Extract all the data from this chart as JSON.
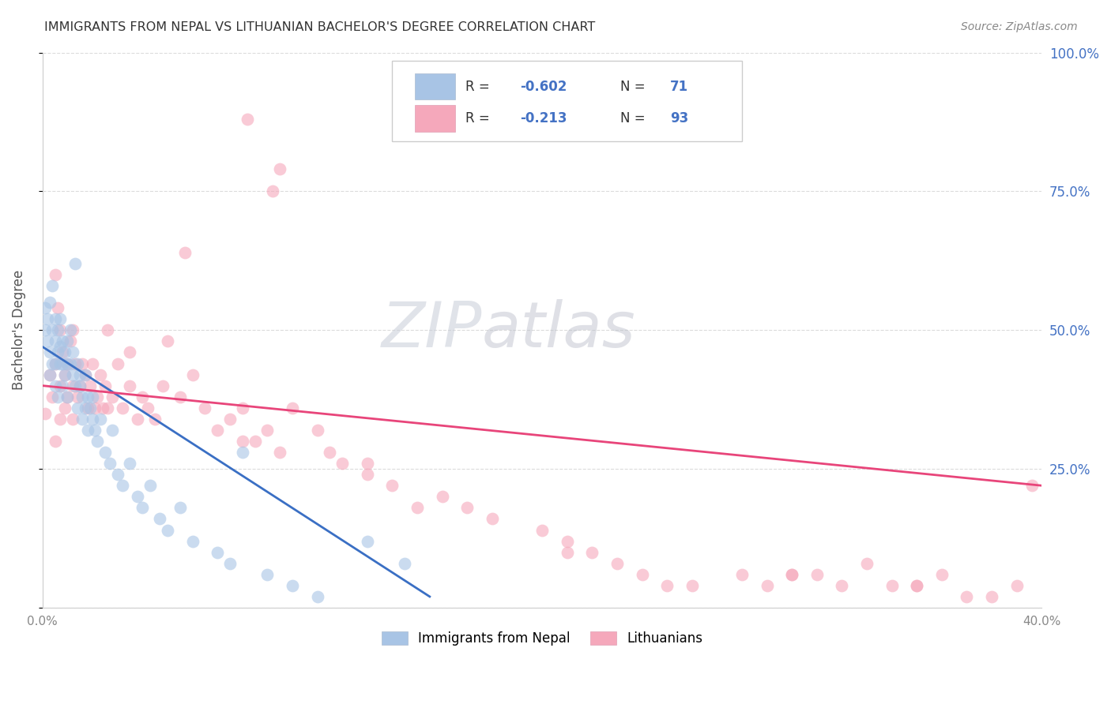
{
  "title": "IMMIGRANTS FROM NEPAL VS LITHUANIAN BACHELOR'S DEGREE CORRELATION CHART",
  "source": "Source: ZipAtlas.com",
  "ylabel": "Bachelor's Degree",
  "series1_label": "Immigrants from Nepal",
  "series2_label": "Lithuanians",
  "series1_R": "-0.602",
  "series1_N": "71",
  "series2_R": "-0.213",
  "series2_N": "93",
  "series1_color": "#a8c4e5",
  "series2_color": "#f5a8bb",
  "series1_line_color": "#3a6fc4",
  "series2_line_color": "#e8457a",
  "watermark_color": "#d8dde8",
  "background_color": "#ffffff",
  "grid_color": "#cccccc",
  "right_axis_color": "#4472c4",
  "legend_text_color": "#4472c4",
  "title_color": "#333333",
  "source_color": "#888888",
  "xlim": [
    0.0,
    0.4
  ],
  "ylim": [
    0.0,
    1.0
  ],
  "marker_size": 130,
  "marker_alpha": 0.6,
  "series1_x": [
    0.001,
    0.001,
    0.002,
    0.002,
    0.003,
    0.003,
    0.003,
    0.004,
    0.004,
    0.004,
    0.005,
    0.005,
    0.005,
    0.005,
    0.006,
    0.006,
    0.006,
    0.007,
    0.007,
    0.007,
    0.008,
    0.008,
    0.008,
    0.009,
    0.009,
    0.01,
    0.01,
    0.01,
    0.011,
    0.011,
    0.012,
    0.012,
    0.013,
    0.013,
    0.014,
    0.014,
    0.015,
    0.015,
    0.016,
    0.016,
    0.017,
    0.017,
    0.018,
    0.018,
    0.019,
    0.02,
    0.02,
    0.021,
    0.022,
    0.023,
    0.025,
    0.027,
    0.028,
    0.03,
    0.032,
    0.035,
    0.038,
    0.04,
    0.043,
    0.047,
    0.05,
    0.055,
    0.06,
    0.07,
    0.075,
    0.08,
    0.09,
    0.1,
    0.11,
    0.13,
    0.145
  ],
  "series1_y": [
    0.5,
    0.54,
    0.52,
    0.48,
    0.55,
    0.46,
    0.42,
    0.5,
    0.44,
    0.58,
    0.48,
    0.52,
    0.44,
    0.4,
    0.5,
    0.46,
    0.38,
    0.47,
    0.52,
    0.44,
    0.48,
    0.44,
    0.4,
    0.46,
    0.42,
    0.44,
    0.48,
    0.38,
    0.44,
    0.5,
    0.42,
    0.46,
    0.62,
    0.4,
    0.44,
    0.36,
    0.4,
    0.42,
    0.38,
    0.34,
    0.36,
    0.42,
    0.38,
    0.32,
    0.36,
    0.34,
    0.38,
    0.32,
    0.3,
    0.34,
    0.28,
    0.26,
    0.32,
    0.24,
    0.22,
    0.26,
    0.2,
    0.18,
    0.22,
    0.16,
    0.14,
    0.18,
    0.12,
    0.1,
    0.08,
    0.28,
    0.06,
    0.04,
    0.02,
    0.12,
    0.08
  ],
  "series2_x": [
    0.001,
    0.003,
    0.004,
    0.005,
    0.005,
    0.006,
    0.007,
    0.007,
    0.008,
    0.009,
    0.009,
    0.01,
    0.01,
    0.011,
    0.012,
    0.012,
    0.013,
    0.014,
    0.015,
    0.016,
    0.017,
    0.018,
    0.019,
    0.02,
    0.021,
    0.022,
    0.023,
    0.024,
    0.025,
    0.026,
    0.028,
    0.03,
    0.032,
    0.035,
    0.038,
    0.04,
    0.042,
    0.045,
    0.048,
    0.05,
    0.055,
    0.06,
    0.065,
    0.07,
    0.075,
    0.08,
    0.085,
    0.09,
    0.095,
    0.1,
    0.11,
    0.115,
    0.12,
    0.13,
    0.14,
    0.15,
    0.16,
    0.17,
    0.18,
    0.2,
    0.21,
    0.22,
    0.23,
    0.24,
    0.25,
    0.26,
    0.28,
    0.29,
    0.3,
    0.31,
    0.32,
    0.33,
    0.34,
    0.35,
    0.36,
    0.37,
    0.38,
    0.39,
    0.396,
    0.082,
    0.095,
    0.092,
    0.057,
    0.007,
    0.005,
    0.026,
    0.035,
    0.012,
    0.08,
    0.13,
    0.21,
    0.3,
    0.35
  ],
  "series2_y": [
    0.35,
    0.42,
    0.38,
    0.44,
    0.3,
    0.54,
    0.4,
    0.34,
    0.46,
    0.42,
    0.36,
    0.38,
    0.44,
    0.48,
    0.4,
    0.34,
    0.44,
    0.38,
    0.4,
    0.44,
    0.42,
    0.36,
    0.4,
    0.44,
    0.36,
    0.38,
    0.42,
    0.36,
    0.4,
    0.36,
    0.38,
    0.44,
    0.36,
    0.4,
    0.34,
    0.38,
    0.36,
    0.34,
    0.4,
    0.48,
    0.38,
    0.42,
    0.36,
    0.32,
    0.34,
    0.36,
    0.3,
    0.32,
    0.28,
    0.36,
    0.32,
    0.28,
    0.26,
    0.24,
    0.22,
    0.18,
    0.2,
    0.18,
    0.16,
    0.14,
    0.12,
    0.1,
    0.08,
    0.06,
    0.04,
    0.04,
    0.06,
    0.04,
    0.06,
    0.06,
    0.04,
    0.08,
    0.04,
    0.04,
    0.06,
    0.02,
    0.02,
    0.04,
    0.22,
    0.88,
    0.79,
    0.75,
    0.64,
    0.5,
    0.6,
    0.5,
    0.46,
    0.5,
    0.3,
    0.26,
    0.1,
    0.06,
    0.04
  ],
  "trend1_x0": 0.0,
  "trend1_x1": 0.155,
  "trend1_y0": 0.47,
  "trend1_y1": 0.02,
  "trend2_x0": 0.0,
  "trend2_x1": 0.4,
  "trend2_y0": 0.4,
  "trend2_y1": 0.22
}
